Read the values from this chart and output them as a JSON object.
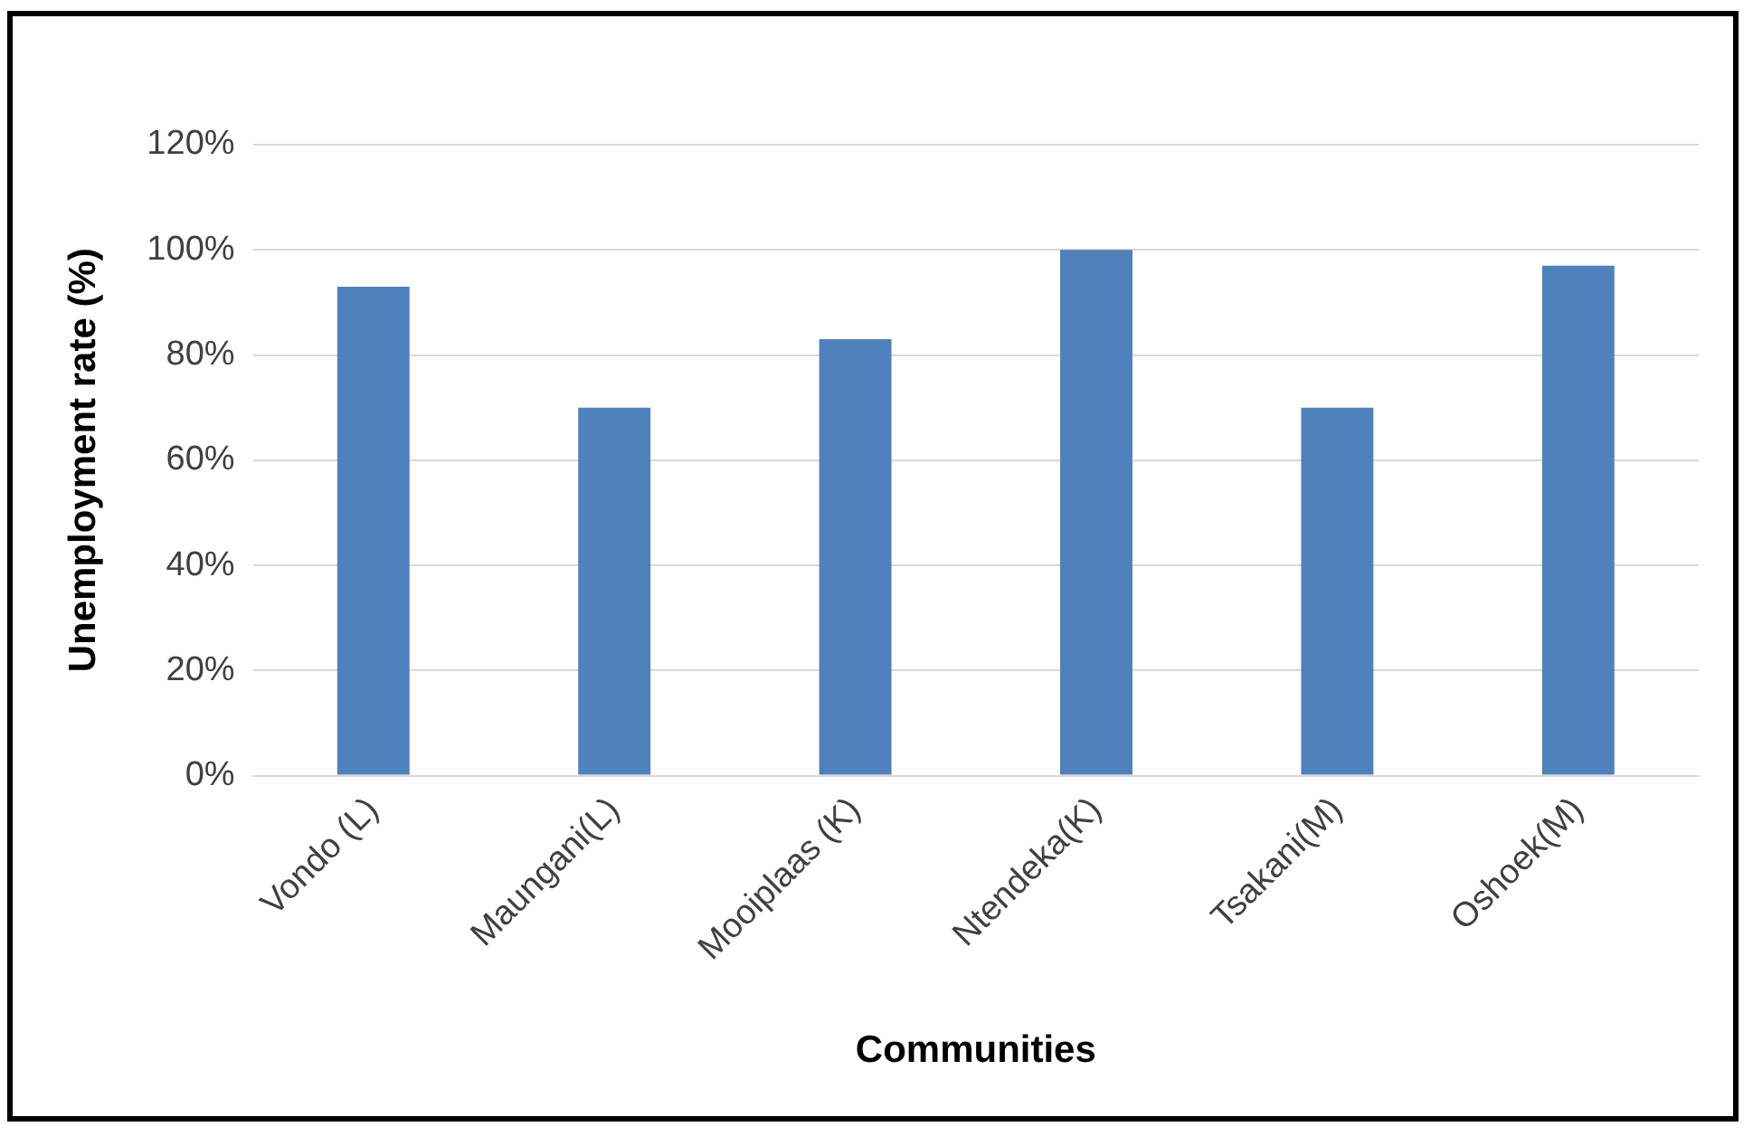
{
  "chart_data": {
    "type": "bar",
    "xlabel": "Communities",
    "ylabel": "Unemployment rate (%)",
    "categories": [
      "Vondo (L)",
      "Maungani(L)",
      "Mooiplaas (K)",
      "Ntendeka(K)",
      "Tsakani(M)",
      "Oshoek(M)"
    ],
    "values": [
      93,
      70,
      83,
      100,
      70,
      97
    ],
    "color": "#4f81bd",
    "ylim": [
      0,
      120
    ],
    "yticks": [
      {
        "value": 0,
        "label": "0%"
      },
      {
        "value": 20,
        "label": "20%"
      },
      {
        "value": 40,
        "label": "40%"
      },
      {
        "value": 60,
        "label": "60%"
      },
      {
        "value": 80,
        "label": "80%"
      },
      {
        "value": 100,
        "label": "100%"
      },
      {
        "value": 120,
        "label": "120%"
      }
    ],
    "grid": "y",
    "legend": false
  }
}
